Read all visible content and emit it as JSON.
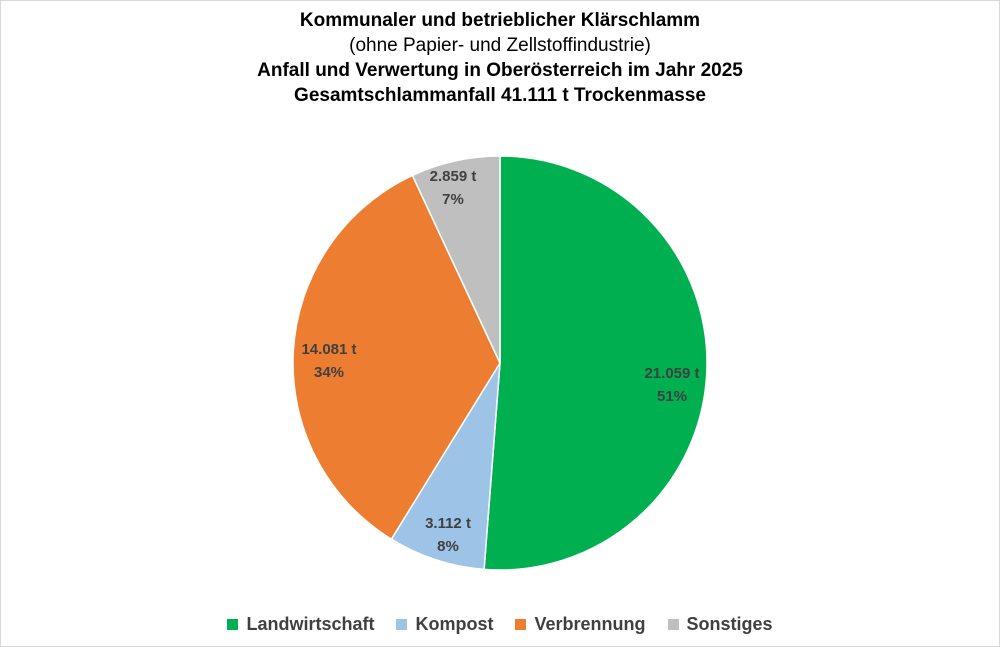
{
  "chart_data": {
    "type": "pie",
    "title_lines": [
      "Kommunaler und betrieblicher Klärschlamm",
      "(ohne Papier- und Zellstoffindustrie)",
      "Anfall und Verwertung in Oberösterreich im Jahr 2025",
      "Gesamtschlammanfall 41.111 t Trockenmasse"
    ],
    "slices": [
      {
        "name": "Landwirtschaft",
        "value": 21059,
        "value_label": "21.059 t",
        "percent_label": "51%",
        "color": "#00b050"
      },
      {
        "name": "Kompost",
        "value": 3112,
        "value_label": "3.112 t",
        "percent_label": "8%",
        "color": "#9dc3e6"
      },
      {
        "name": "Verbrennung",
        "value": 14081,
        "value_label": "14.081 t",
        "percent_label": "34%",
        "color": "#ed7d31"
      },
      {
        "name": "Sonstiges",
        "value": 2859,
        "value_label": "2.859 t",
        "percent_label": "7%",
        "color": "#bfbfbf"
      }
    ],
    "legend_position": "bottom",
    "start_angle": "12 o'clock, clockwise"
  }
}
